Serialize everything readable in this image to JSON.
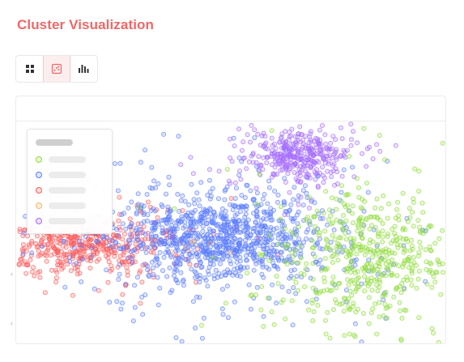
{
  "header": {
    "title": "Cluster Visualization"
  },
  "toolbar": {
    "buttons": [
      {
        "icon": "grid-icon",
        "active": false
      },
      {
        "icon": "scatter-icon",
        "active": true
      },
      {
        "icon": "bar-chart-icon",
        "active": false
      }
    ]
  },
  "colors": {
    "accent": "#f26666",
    "cluster_red": "#ff5a5a",
    "cluster_blue": "#5b7dff",
    "cluster_purple": "#a66cff",
    "cluster_green": "#8fdc3a",
    "cluster_orange": "#f5b56b"
  },
  "legend": {
    "items": [
      {
        "color": "#8fdc3a"
      },
      {
        "color": "#5b7dff"
      },
      {
        "color": "#ff5a5a"
      },
      {
        "color": "#f5b56b"
      },
      {
        "color": "#a66cff"
      }
    ]
  },
  "chart_data": {
    "type": "scatter",
    "grid": false,
    "legend_placement": "top-left",
    "series": [
      {
        "color": "#ff5a5a",
        "center": [
          0.15,
          0.55
        ],
        "spread": [
          0.09,
          0.06
        ],
        "points": 520
      },
      {
        "color": "#5b7dff",
        "center": [
          0.47,
          0.52
        ],
        "spread": [
          0.11,
          0.09
        ],
        "points": 1100
      },
      {
        "color": "#a66cff",
        "center": [
          0.65,
          0.15
        ],
        "spread": [
          0.05,
          0.05
        ],
        "points": 380
      },
      {
        "color": "#8fdc3a",
        "center": [
          0.82,
          0.62
        ],
        "spread": [
          0.09,
          0.13
        ],
        "points": 560
      },
      {
        "color": "#f5b56b",
        "center": [
          0.42,
          0.55
        ],
        "spread": [
          0.02,
          0.02
        ],
        "points": 6
      }
    ]
  }
}
